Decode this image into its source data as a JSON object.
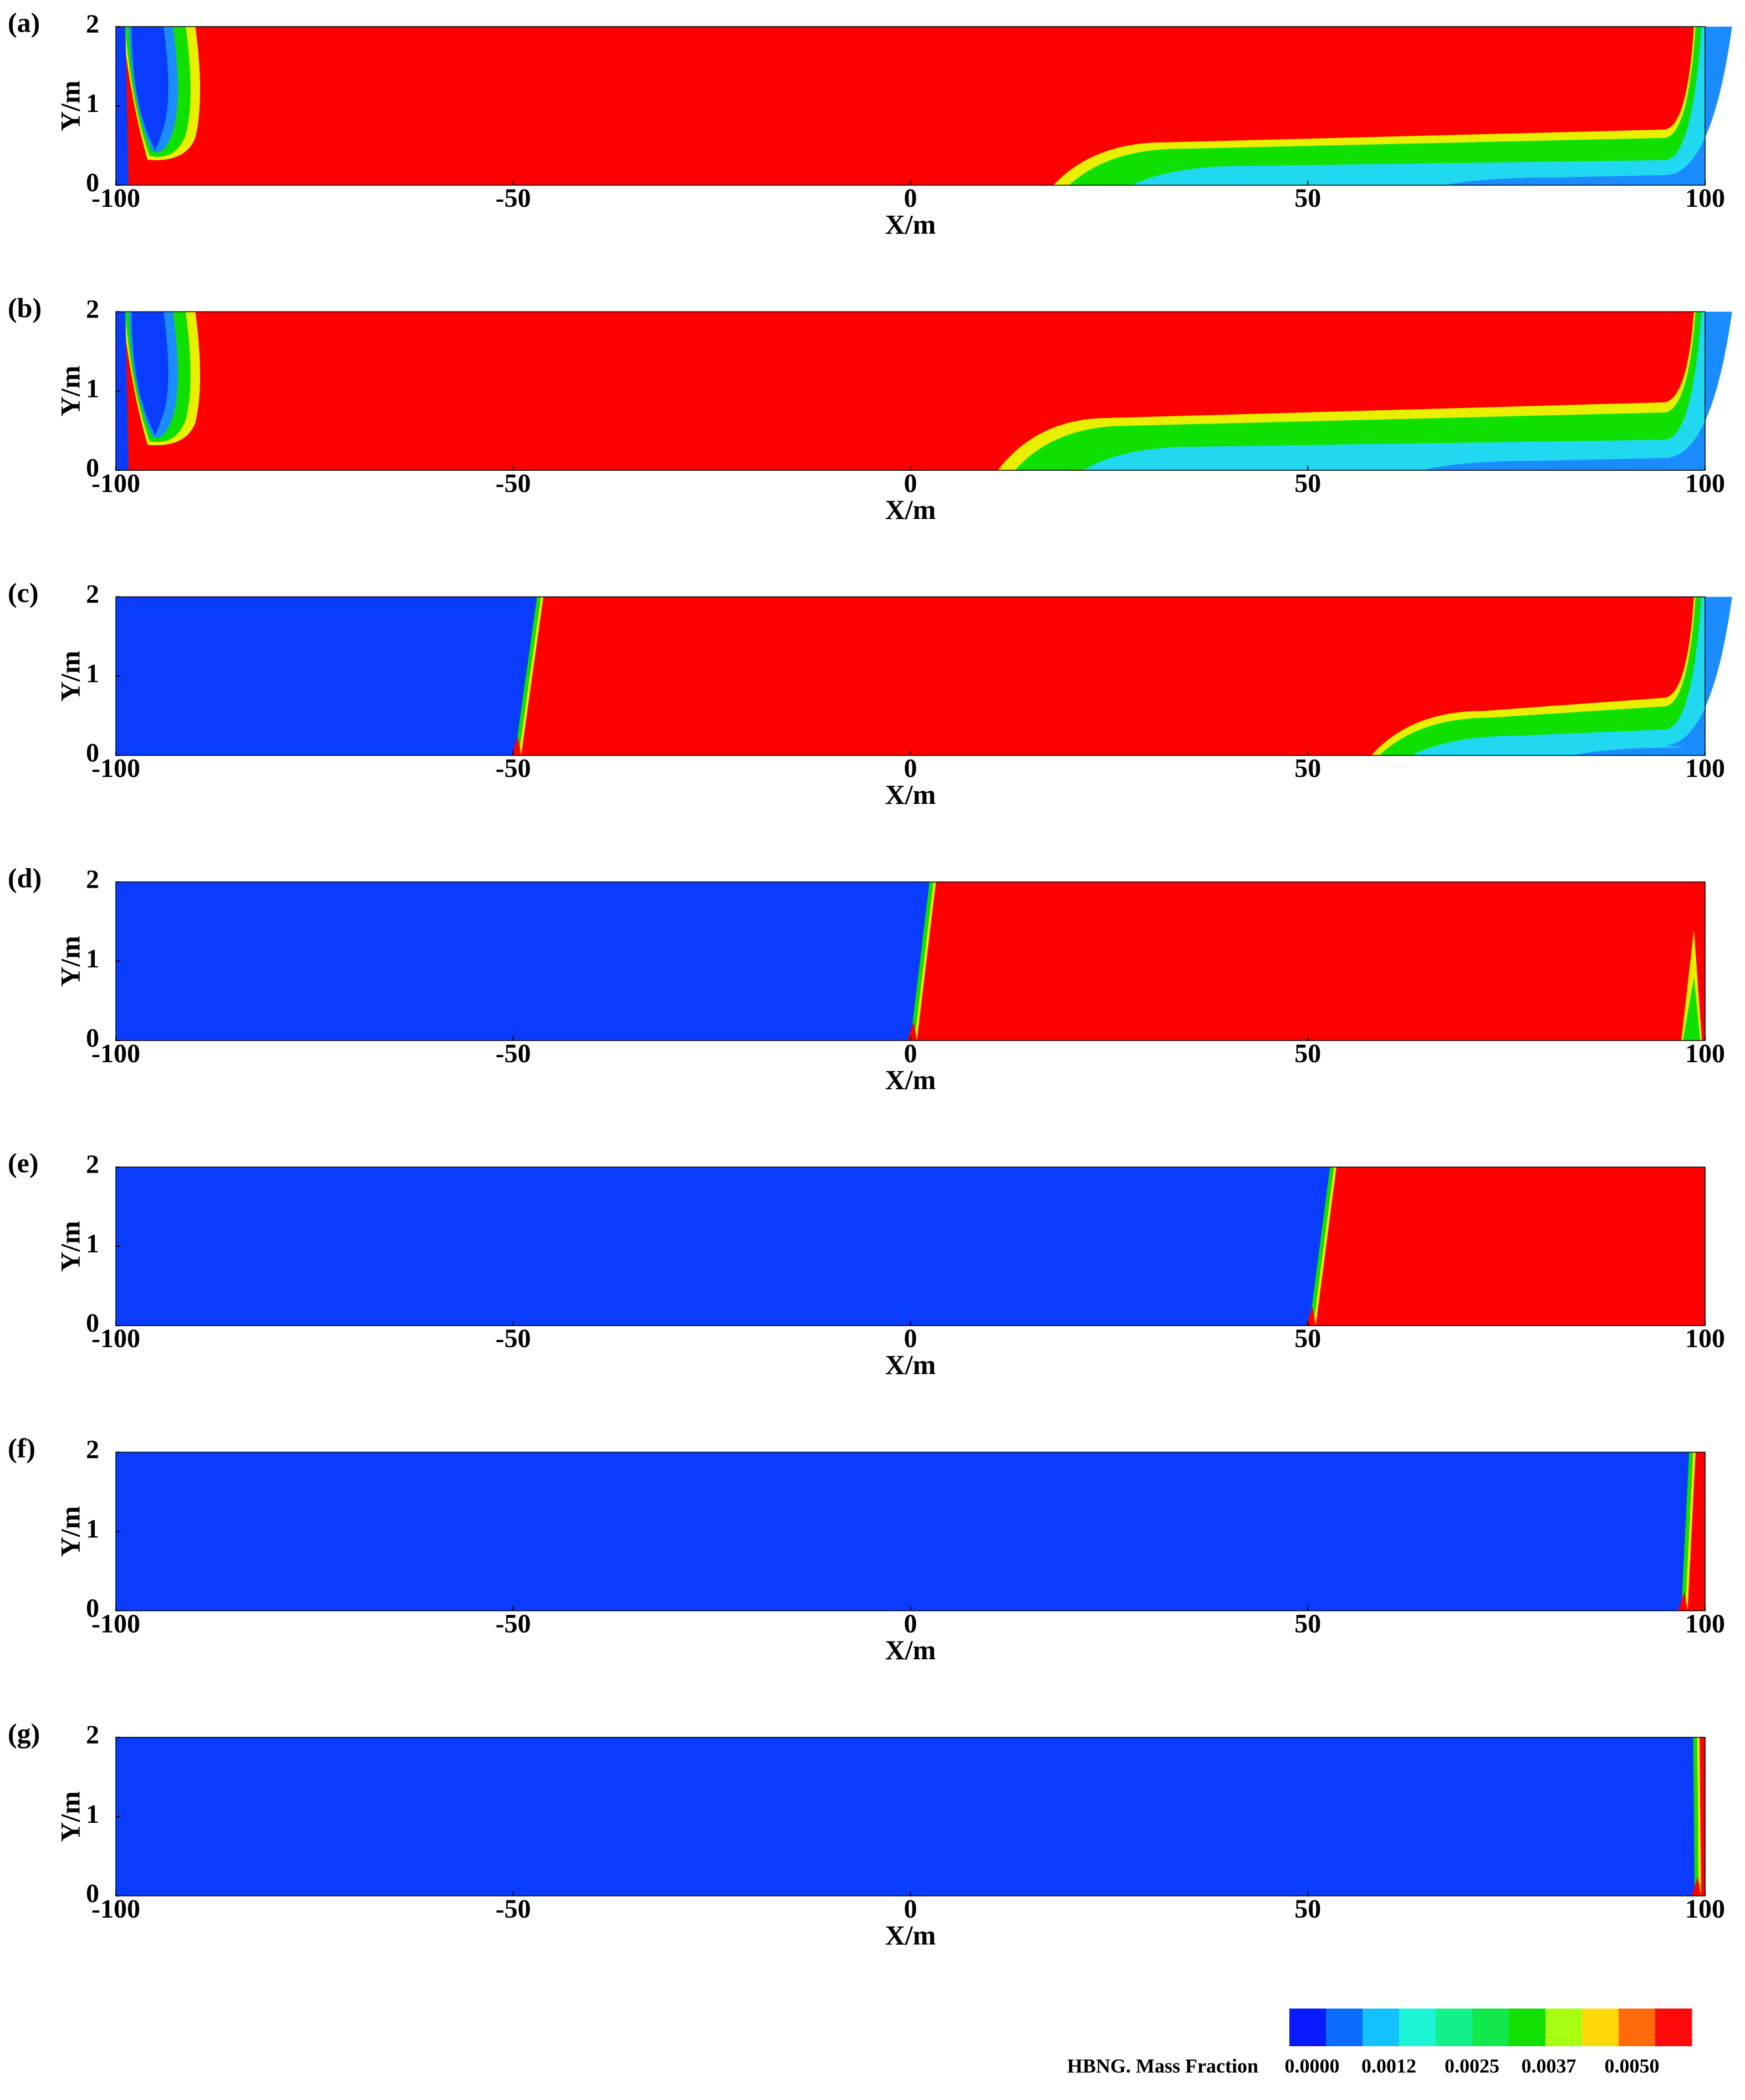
{
  "chart_data": [
    {
      "type": "contour",
      "label": "(a)",
      "xlabel": "X/m",
      "ylabel": "Y/m",
      "xlim": [
        -100,
        100
      ],
      "xticks": [
        -100,
        -50,
        0,
        50,
        100
      ],
      "ylim": [
        0,
        2
      ],
      "yticks": [
        0,
        1,
        2
      ]
    },
    {
      "type": "contour",
      "label": "(b)",
      "xlabel": "X/m",
      "ylabel": "Y/m",
      "xlim": [
        -100,
        100
      ],
      "xticks": [
        -100,
        -50,
        0,
        50,
        100
      ],
      "ylim": [
        0,
        2
      ],
      "yticks": [
        0,
        1,
        2
      ]
    },
    {
      "type": "contour",
      "label": "(c)",
      "xlabel": "X/m",
      "ylabel": "Y/m",
      "xlim": [
        -100,
        100
      ],
      "xticks": [
        -100,
        -50,
        0,
        50,
        100
      ],
      "ylim": [
        0,
        2
      ],
      "yticks": [
        0,
        1,
        2
      ]
    },
    {
      "type": "contour",
      "label": "(d)",
      "xlabel": "X/m",
      "ylabel": "Y/m",
      "xlim": [
        -100,
        100
      ],
      "xticks": [
        -100,
        -50,
        0,
        50,
        100
      ],
      "ylim": [
        0,
        2
      ],
      "yticks": [
        0,
        1,
        2
      ]
    },
    {
      "type": "contour",
      "label": "(e)",
      "xlabel": "X/m",
      "ylabel": "Y/m",
      "xlim": [
        -100,
        100
      ],
      "xticks": [
        -100,
        -50,
        0,
        50,
        100
      ],
      "ylim": [
        0,
        2
      ],
      "yticks": [
        0,
        1,
        2
      ]
    },
    {
      "type": "contour",
      "label": "(f)",
      "xlabel": "X/m",
      "ylabel": "Y/m",
      "xlim": [
        -100,
        100
      ],
      "xticks": [
        -100,
        -50,
        0,
        50,
        100
      ],
      "ylim": [
        0,
        2
      ],
      "yticks": [
        0,
        1,
        2
      ]
    },
    {
      "type": "contour",
      "label": "(g)",
      "xlabel": "X/m",
      "ylabel": "Y/m",
      "xlim": [
        -100,
        100
      ],
      "xticks": [
        -100,
        -50,
        0,
        50,
        100
      ],
      "ylim": [
        0,
        2
      ],
      "yticks": [
        0,
        1,
        2
      ]
    }
  ],
  "colorbar": {
    "title": "HBNG. Mass Fraction",
    "colors": [
      "#0a1aff",
      "#0a6cff",
      "#13c2ff",
      "#1cf5d5",
      "#14f08a",
      "#13e84a",
      "#12e000",
      "#a8ff12",
      "#ffd80a",
      "#ff6a0a",
      "#ff0a0a"
    ],
    "lim": [
      0,
      0.005
    ],
    "ticks": [
      {
        "value": 0,
        "label": "0.0000"
      },
      {
        "value": 0.0012,
        "label": "0.0012"
      },
      {
        "value": 0.0025,
        "label": "0.0025"
      },
      {
        "value": 0.0037,
        "label": "0.0037"
      },
      {
        "value": 0.005,
        "label": "0.0050"
      }
    ]
  }
}
